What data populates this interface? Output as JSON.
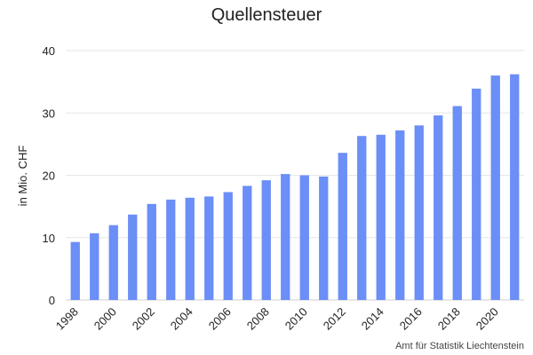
{
  "chart_data": {
    "type": "bar",
    "title": "Quellensteuer",
    "ylabel": "in Mio. CHF",
    "xlabel": "",
    "categories": [
      "1998",
      "1999",
      "2000",
      "2001",
      "2002",
      "2003",
      "2004",
      "2005",
      "2006",
      "2007",
      "2008",
      "2009",
      "2010",
      "2011",
      "2012",
      "2013",
      "2014",
      "2015",
      "2016",
      "2017",
      "2018",
      "2019",
      "2020",
      "2021"
    ],
    "x_tick_labels": [
      "1998",
      "2000",
      "2002",
      "2004",
      "2006",
      "2008",
      "2010",
      "2012",
      "2014",
      "2016",
      "2018",
      "2020"
    ],
    "values": [
      9.3,
      10.7,
      12.0,
      13.7,
      15.4,
      16.1,
      16.4,
      16.6,
      17.3,
      18.3,
      19.2,
      20.2,
      20.0,
      19.8,
      23.6,
      26.3,
      26.5,
      27.2,
      28.0,
      29.6,
      31.1,
      33.9,
      36.0,
      36.2
    ],
    "ylim": [
      0,
      40
    ],
    "yticks": [
      0,
      10,
      20,
      30,
      40
    ],
    "grid": true,
    "bar_color": "#6b8ef7",
    "source": "Amt für Statistik Liechtenstein"
  }
}
